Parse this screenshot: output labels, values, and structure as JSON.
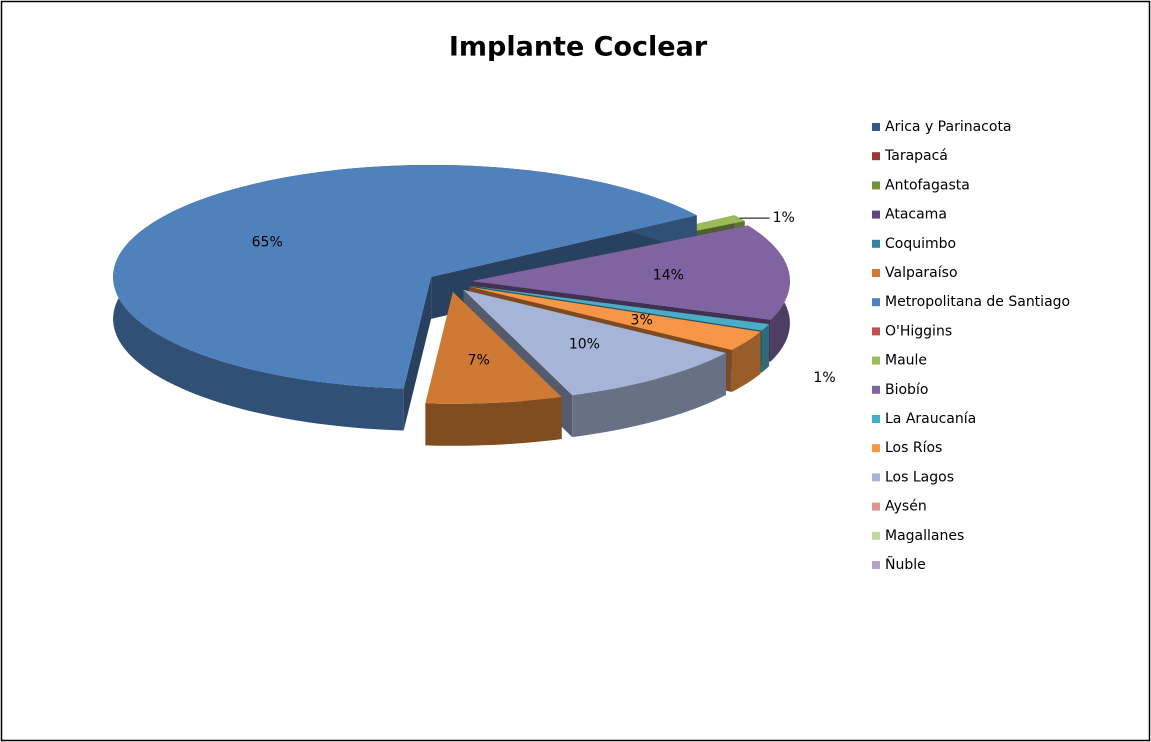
{
  "chart_data": {
    "type": "pie",
    "title": "Implante Coclear",
    "categories": [
      "Arica y Parinacota",
      "Tarapacá",
      "Antofagasta",
      "Atacama",
      "Coquimbo",
      "Valparaíso",
      "Metropolitana de Santiago",
      "O'Higgins",
      "Maule",
      "Biobío",
      "La Araucanía",
      "Los Ríos",
      "Los Lagos",
      "Aysén",
      "Magallanes",
      "Ñuble"
    ],
    "values": [
      0,
      0,
      0,
      0,
      0,
      7,
      65,
      0,
      1,
      14,
      1,
      3,
      10,
      0,
      0,
      0
    ],
    "value_labels": [
      null,
      null,
      null,
      null,
      null,
      "7%",
      "65%",
      null,
      "1%",
      "14%",
      "1%",
      "3%",
      "10%",
      null,
      null,
      null
    ],
    "colors": [
      "#35598c",
      "#953735",
      "#76923c",
      "#5f497a",
      "#31859c",
      "#cf7a34",
      "#4f81bd",
      "#c0504d",
      "#9bbb59",
      "#8064a2",
      "#4bacc6",
      "#f79646",
      "#a6b5d7",
      "#d99694",
      "#c3d69b",
      "#b3a2c7"
    ],
    "legend": "right"
  }
}
